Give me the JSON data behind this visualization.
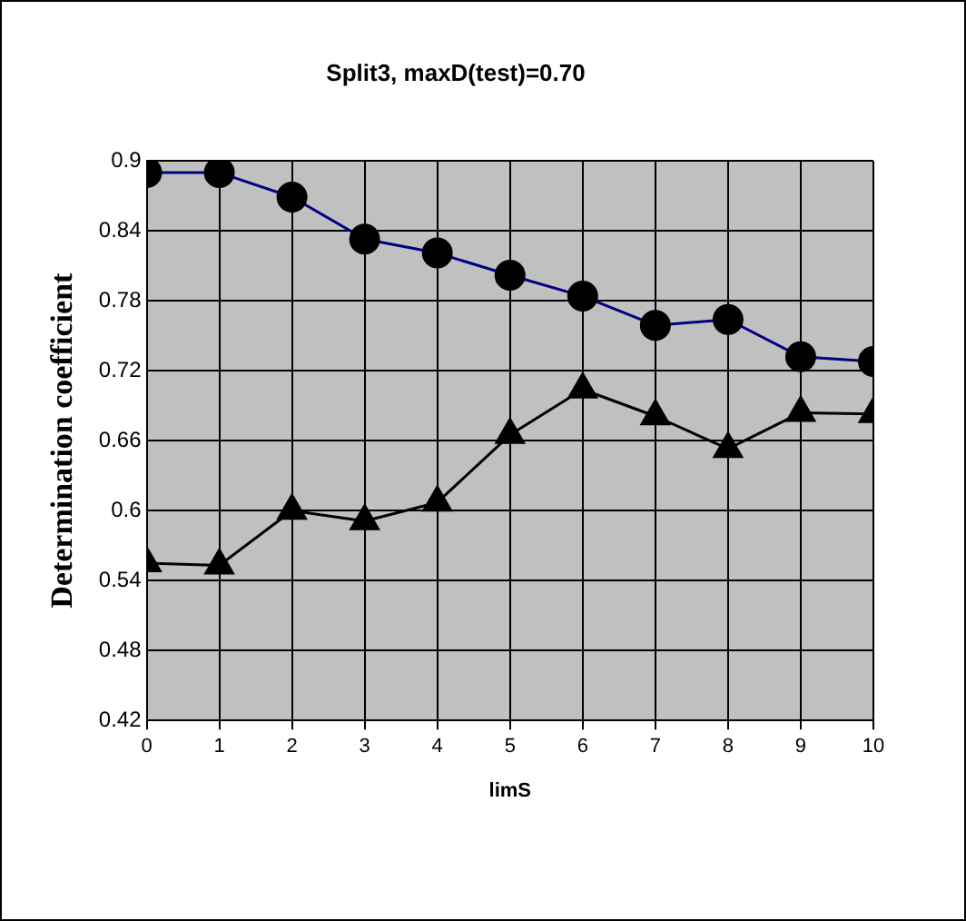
{
  "chart_data": {
    "type": "line",
    "title": "Split3, maxD(test)=0.70",
    "xlabel": "limS",
    "ylabel": "Determination coefficient",
    "x": [
      0,
      1,
      2,
      3,
      4,
      5,
      6,
      7,
      8,
      9,
      10
    ],
    "series": [
      {
        "color": "#000080",
        "marker": "circle",
        "values": [
          0.89,
          0.89,
          0.869,
          0.833,
          0.821,
          0.802,
          0.784,
          0.759,
          0.764,
          0.732,
          0.728
        ]
      },
      {
        "color": "#000000",
        "marker": "triangle",
        "values": [
          0.555,
          0.553,
          0.6,
          0.591,
          0.607,
          0.665,
          0.704,
          0.681,
          0.653,
          0.684,
          0.683
        ]
      }
    ],
    "xlim": [
      0,
      10
    ],
    "xticks": [
      0,
      1,
      2,
      3,
      4,
      5,
      6,
      7,
      8,
      9,
      10
    ],
    "ylim": [
      0.42,
      0.9
    ],
    "yticks": [
      0.42,
      0.48,
      0.54,
      0.6,
      0.66,
      0.72,
      0.78,
      0.84,
      0.9
    ],
    "grid": true
  }
}
